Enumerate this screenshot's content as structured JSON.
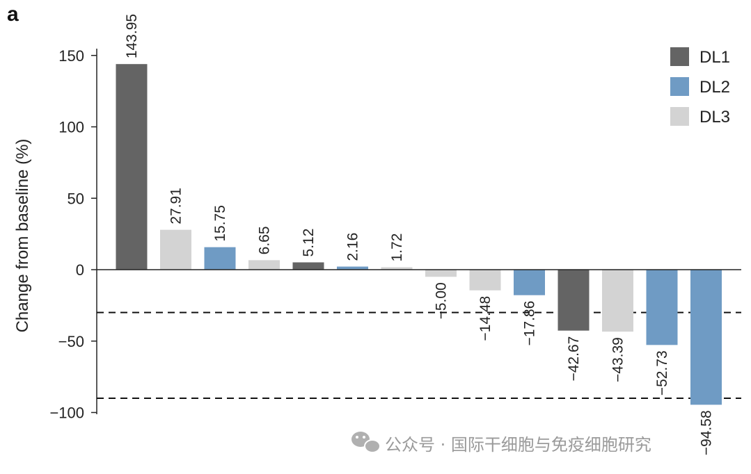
{
  "panel_label": "a",
  "watermark_text": "公众号 · 国际干细胞与免疫细胞研究",
  "colors": {
    "DL1": "#646464",
    "DL2": "#6f9bc4",
    "DL3": "#d3d3d3"
  },
  "chart_data": {
    "type": "bar",
    "title": "",
    "xlabel": "",
    "ylabel": "Change from baseline (%)",
    "ylim": [
      -100,
      150
    ],
    "yticks": [
      150,
      100,
      50,
      0,
      -50,
      -100
    ],
    "ytick_labels": [
      "150",
      "100",
      "50",
      "0",
      "−50",
      "−100"
    ],
    "reference_lines": [
      -30,
      -90
    ],
    "legend": {
      "position": "top-right",
      "entries": [
        "DL1",
        "DL2",
        "DL3"
      ]
    },
    "bars": [
      {
        "value": 143.95,
        "label": "143.95",
        "group": "DL1"
      },
      {
        "value": 27.91,
        "label": "27.91",
        "group": "DL3"
      },
      {
        "value": 15.75,
        "label": "15.75",
        "group": "DL2"
      },
      {
        "value": 6.65,
        "label": "6.65",
        "group": "DL3"
      },
      {
        "value": 5.12,
        "label": "5.12",
        "group": "DL1"
      },
      {
        "value": 2.16,
        "label": "2.16",
        "group": "DL2"
      },
      {
        "value": 1.72,
        "label": "1.72",
        "group": "DL3"
      },
      {
        "value": -5.0,
        "label": "−5.00",
        "group": "DL3"
      },
      {
        "value": -14.48,
        "label": "−14.48",
        "group": "DL3"
      },
      {
        "value": -17.86,
        "label": "−17.86",
        "group": "DL2"
      },
      {
        "value": -42.67,
        "label": "−42.67",
        "group": "DL1"
      },
      {
        "value": -43.39,
        "label": "−43.39",
        "group": "DL3"
      },
      {
        "value": -52.73,
        "label": "−52.73",
        "group": "DL2"
      },
      {
        "value": -94.58,
        "label": "−94.58",
        "group": "DL2"
      }
    ]
  }
}
